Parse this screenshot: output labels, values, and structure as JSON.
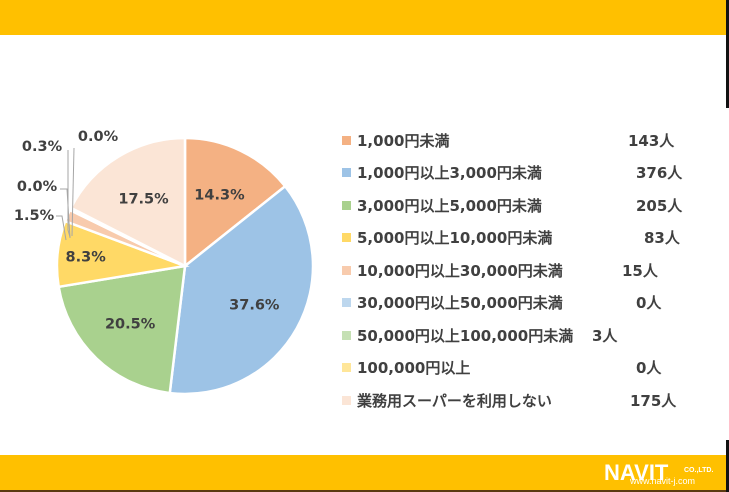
{
  "chart_data": {
    "type": "pie",
    "title": "",
    "categories": [
      "1,000円未満",
      "1,000円以上3,000円未満",
      "3,000円以上5,000円未満",
      "5,000円以上10,000円未満",
      "10,000円以上30,000円未満",
      "30,000円以上50,000円未満",
      "50,000円以上100,000円未満",
      "100,000円以上",
      "業務用スーパーを利用しない"
    ],
    "values": [
      143,
      376,
      205,
      83,
      15,
      0,
      3,
      0,
      175
    ],
    "percent_labels": [
      "14.3%",
      "37.6%",
      "20.5%",
      "8.3%",
      "1.5%",
      "0.0%",
      "0.3%",
      "0.0%",
      "17.5%"
    ],
    "colors": [
      "#F4B183",
      "#9DC3E6",
      "#A9D18E",
      "#FFD966",
      "#F8CBAD",
      "#BDD7EE",
      "#C5E0B4",
      "#FFE699",
      "#FBE5D6"
    ],
    "unit": "人",
    "legend_position": "right",
    "start_angle_deg": 0,
    "direction": "clockwise"
  },
  "legend": {
    "items": [
      {
        "label": "1,000円未満",
        "count": "143人"
      },
      {
        "label": "1,000円以上3,000円未満",
        "count": "376人"
      },
      {
        "label": "3,000円以上5,000円未満",
        "count": "205人"
      },
      {
        "label": "5,000円以上10,000円未満",
        "count": "83人"
      },
      {
        "label": "10,000円以上30,000円未満",
        "count": "15人"
      },
      {
        "label": "30,000円以上50,000円未満",
        "count": "0人"
      },
      {
        "label": "50,000円以上100,000円未満",
        "count": "3人"
      },
      {
        "label": "100,000円以上",
        "count": "0人"
      },
      {
        "label": "業務用スーパーを利用しない",
        "count": "175人"
      }
    ]
  },
  "theme": {
    "bar_color": "#FFC000"
  },
  "logo": {
    "brand": "NAVIT",
    "suffix": "CO.,LTD.",
    "url": "www.navit-j.com"
  }
}
